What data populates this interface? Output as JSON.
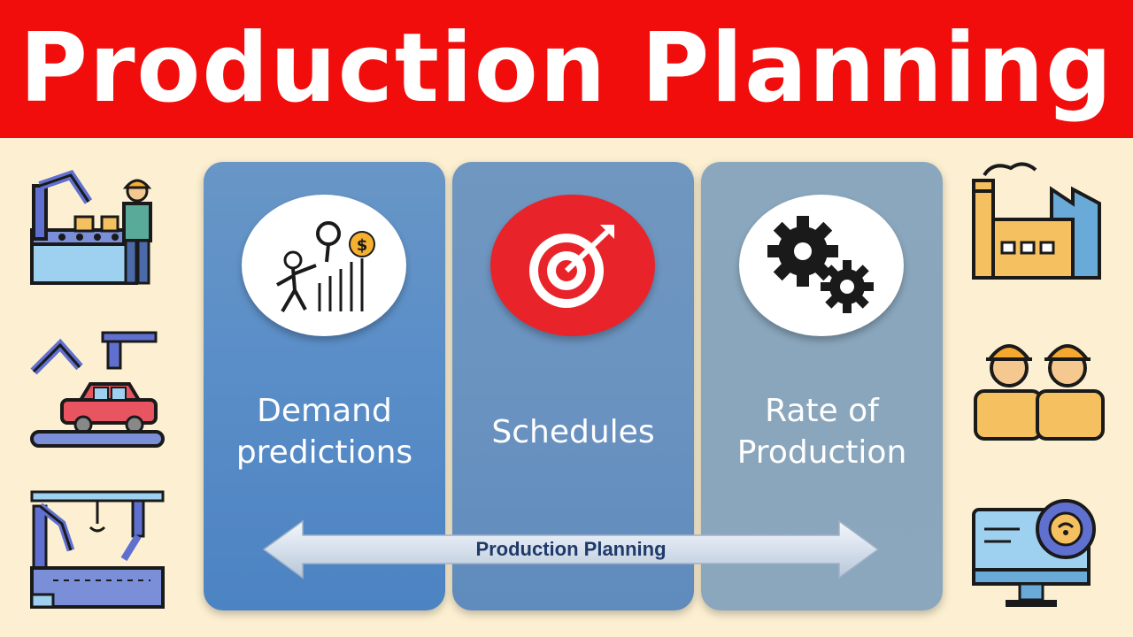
{
  "header": {
    "title": "Production Planning",
    "background": "#f20d0d"
  },
  "panels": [
    {
      "label_line1": "Demand",
      "label_line2": "predictions",
      "icon": "demand-prediction-icon"
    },
    {
      "label_line1": "Schedules",
      "icon": "target-icon"
    },
    {
      "label_line1": "Rate of",
      "label_line2": "Production",
      "icon": "gears-icon"
    }
  ],
  "arrow": {
    "label": "Production Planning",
    "icon": "double-arrow-icon"
  },
  "left_icons": [
    "robotic-arm-worker-icon",
    "car-assembly-robot-icon",
    "assembly-line-robots-icon"
  ],
  "right_icons": [
    "factory-icon",
    "workers-icon",
    "smart-monitor-gear-icon"
  ],
  "colors": {
    "background": "#fdf0d2",
    "panel_blue": "#5a8ec8",
    "panel_gray": "#8aa6bc",
    "accent_red": "#e8242a"
  }
}
